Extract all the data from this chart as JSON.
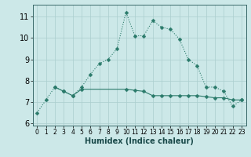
{
  "title": "",
  "xlabel": "Humidex (Indice chaleur)",
  "background_color": "#cce8e8",
  "line_color": "#2a7a6a",
  "xlim": [
    -0.5,
    23.5
  ],
  "ylim": [
    5.9,
    11.55
  ],
  "yticks": [
    6,
    7,
    8,
    9,
    10,
    11
  ],
  "xticks": [
    0,
    1,
    2,
    3,
    4,
    5,
    6,
    7,
    8,
    9,
    10,
    11,
    12,
    13,
    14,
    15,
    16,
    17,
    18,
    19,
    20,
    21,
    22,
    23
  ],
  "curve1_x": [
    0,
    1,
    2,
    3,
    4,
    5,
    6,
    7,
    8,
    9,
    10,
    11,
    12,
    13,
    14,
    15,
    16,
    17,
    18,
    19,
    20,
    21,
    22,
    23
  ],
  "curve1_y": [
    6.5,
    7.1,
    7.7,
    7.5,
    7.3,
    7.7,
    8.3,
    8.8,
    9.0,
    9.5,
    11.2,
    10.1,
    10.1,
    10.8,
    10.5,
    10.4,
    9.95,
    9.0,
    8.7,
    7.7,
    7.7,
    7.5,
    6.8,
    7.1
  ],
  "curve2_x": [
    2,
    3,
    4,
    5,
    10,
    11,
    12,
    13,
    14,
    15,
    16,
    17,
    18,
    19,
    20,
    21,
    22,
    23
  ],
  "curve2_y": [
    7.7,
    7.5,
    7.3,
    7.6,
    7.6,
    7.55,
    7.5,
    7.3,
    7.3,
    7.3,
    7.3,
    7.3,
    7.3,
    7.25,
    7.2,
    7.2,
    7.1,
    7.1
  ],
  "grid_color": "#aacece",
  "markersize": 2.5,
  "linewidth": 0.8,
  "xlabel_fontsize": 7,
  "tick_fontsize_x": 5.5,
  "tick_fontsize_y": 7
}
